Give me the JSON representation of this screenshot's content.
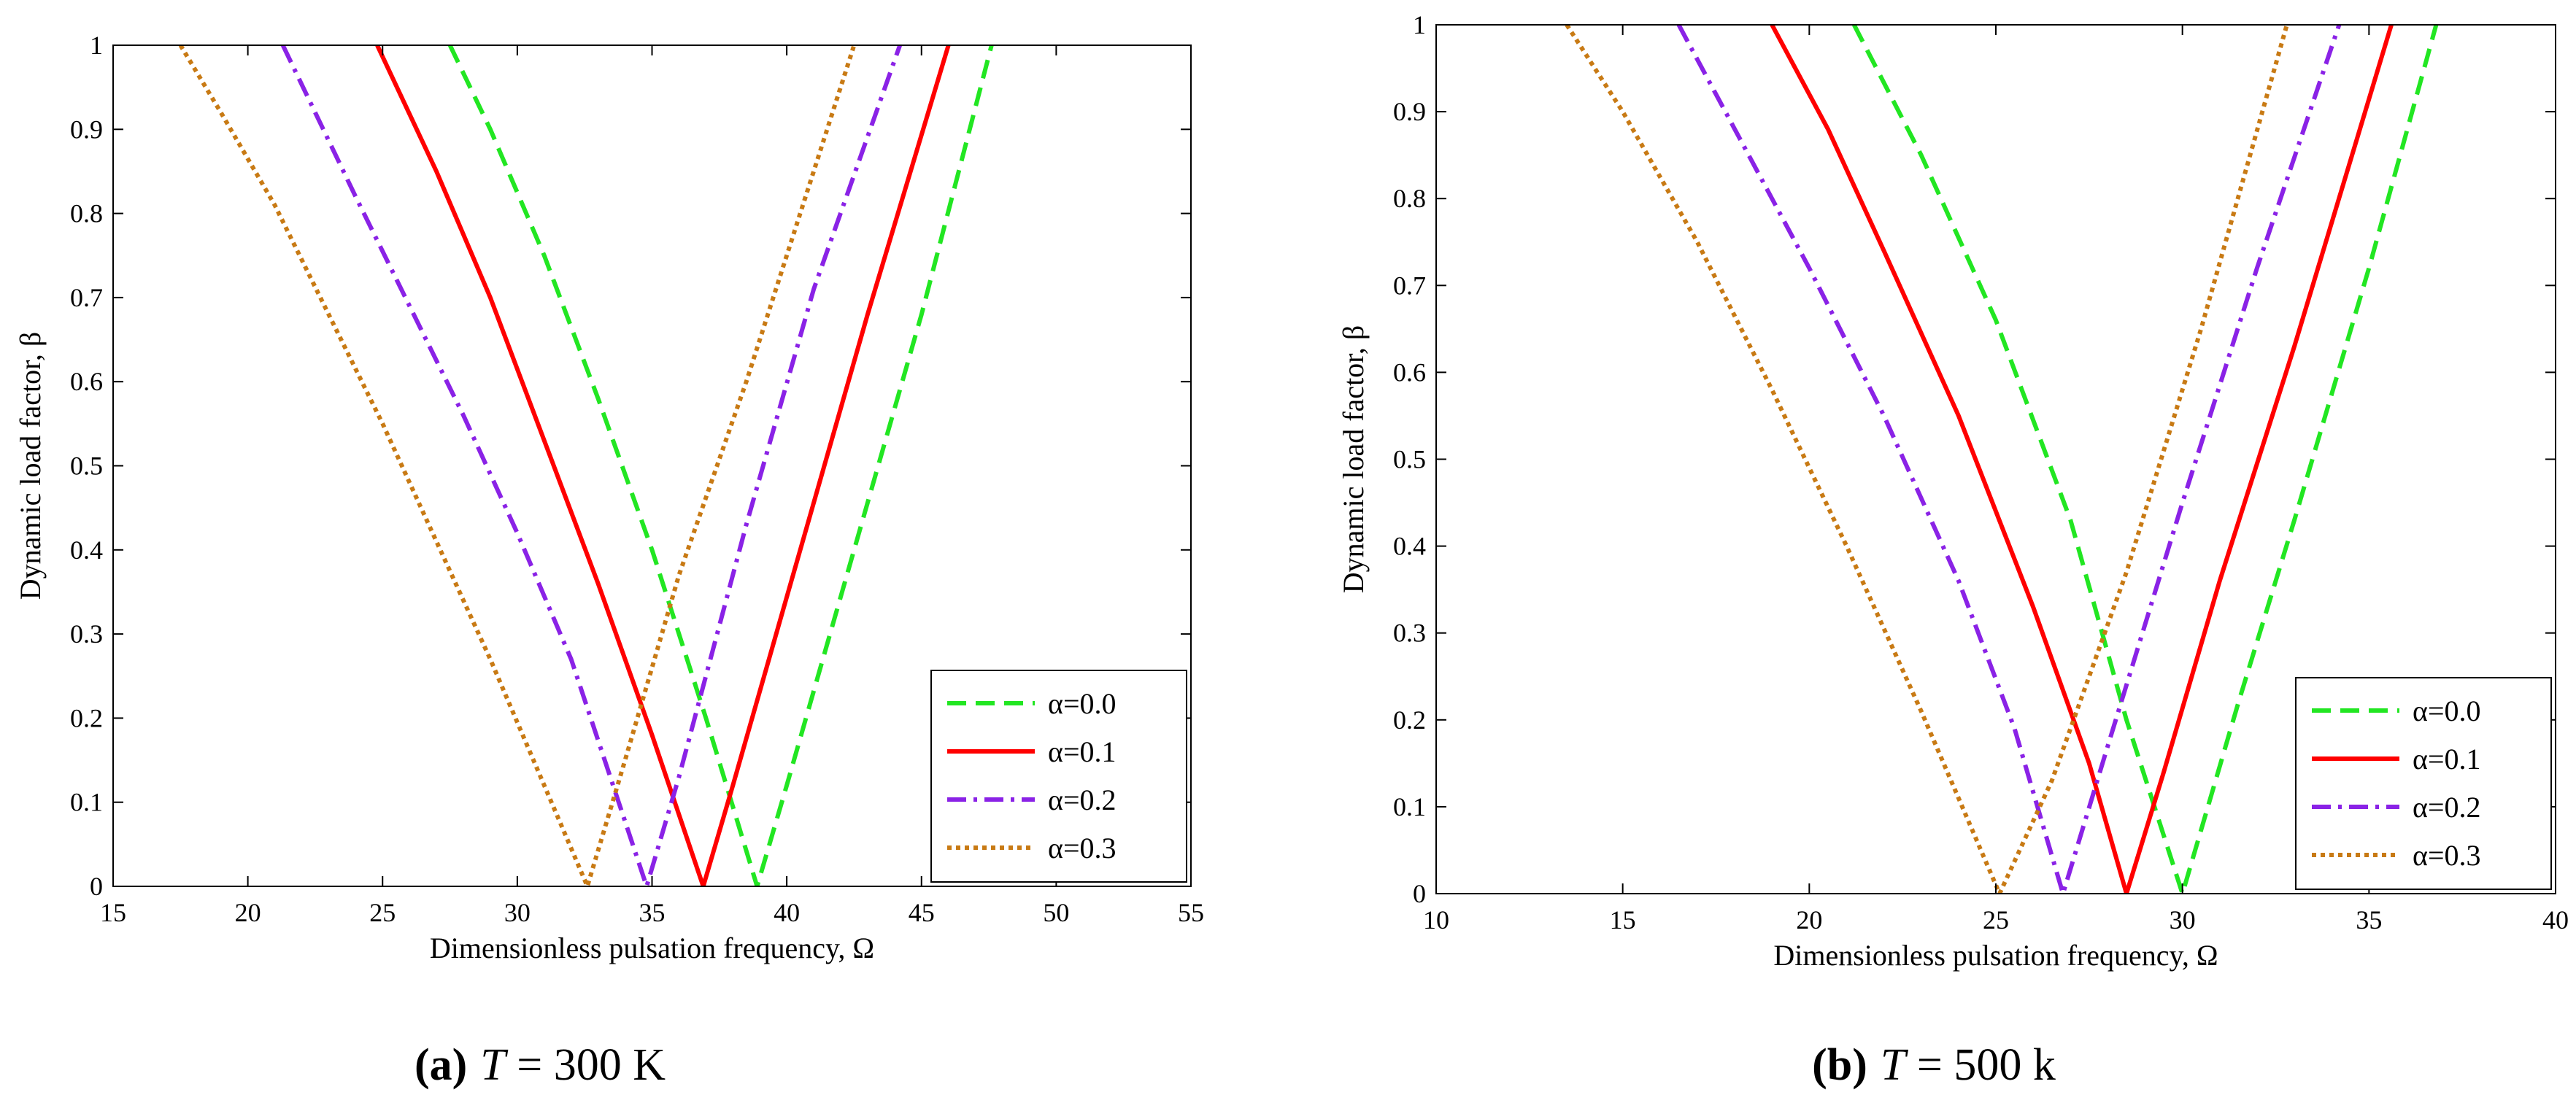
{
  "figure": {
    "captions": [
      {
        "label": "(a)",
        "var": "T",
        "text": " = 300 K"
      },
      {
        "label": "(b)",
        "var": "T",
        "text": " = 500 k"
      }
    ]
  },
  "colors": {
    "alpha0": "#22e622",
    "alpha1": "#ff0000",
    "alpha2": "#8a22e6",
    "alpha3": "#c87a14"
  },
  "chart_data": [
    {
      "type": "line",
      "title": "",
      "xlabel": "Dimensionless pulsation frequency, Ω",
      "ylabel": "Dynamic load factor, β",
      "xlim": [
        15,
        55
      ],
      "ylim": [
        0,
        1
      ],
      "xticks": [
        15,
        20,
        25,
        30,
        35,
        40,
        45,
        50,
        55
      ],
      "yticks": [
        0,
        0.1,
        0.2,
        0.3,
        0.4,
        0.5,
        0.6,
        0.7,
        0.8,
        0.9,
        1
      ],
      "ytick_labels": [
        "0",
        "0.1",
        "0.2",
        "0.3",
        "0.4",
        "0.5",
        "0.6",
        "0.7",
        "0.8",
        "0.9",
        "1"
      ],
      "grid": false,
      "legend_position": "bottom-right",
      "series": [
        {
          "name": "α=0.0",
          "style": "dashed",
          "color_key": "alpha0",
          "x": [
            27.5,
            29,
            31,
            33,
            35,
            37,
            38.9,
            40,
            42.5,
            45,
            47.6
          ],
          "y": [
            1.0,
            0.9,
            0.75,
            0.58,
            0.4,
            0.2,
            0.0,
            0.12,
            0.4,
            0.68,
            1.0
          ]
        },
        {
          "name": "α=0.1",
          "style": "solid",
          "color_key": "alpha1",
          "x": [
            24.8,
            27,
            29,
            31,
            33,
            35,
            36.9,
            38,
            40.5,
            43,
            46.0
          ],
          "y": [
            1.0,
            0.85,
            0.7,
            0.53,
            0.36,
            0.18,
            0.0,
            0.12,
            0.4,
            0.68,
            1.0
          ]
        },
        {
          "name": "α=0.2",
          "style": "dashdot",
          "color_key": "alpha2",
          "x": [
            21.3,
            24,
            26,
            28,
            30,
            32,
            34.8,
            36,
            38.5,
            41,
            44.2
          ],
          "y": [
            1.0,
            0.82,
            0.69,
            0.56,
            0.42,
            0.27,
            0.0,
            0.13,
            0.43,
            0.71,
            1.0
          ]
        },
        {
          "name": "α=0.3",
          "style": "dotted",
          "color_key": "alpha3",
          "x": [
            17.5,
            19,
            21,
            23,
            25,
            27,
            29,
            31,
            32.6,
            34,
            36,
            38.5,
            42.5
          ],
          "y": [
            1.0,
            0.92,
            0.81,
            0.68,
            0.55,
            0.41,
            0.27,
            0.12,
            0.0,
            0.15,
            0.37,
            0.6,
            1.0
          ]
        }
      ]
    },
    {
      "type": "line",
      "title": "",
      "xlabel": "Dimensionless pulsation frequency, Ω",
      "ylabel": "Dynamic load factor, β",
      "xlim": [
        10,
        40
      ],
      "ylim": [
        0,
        1
      ],
      "xticks": [
        10,
        15,
        20,
        25,
        30,
        35,
        40
      ],
      "yticks": [
        0,
        0.1,
        0.2,
        0.3,
        0.4,
        0.5,
        0.6,
        0.7,
        0.8,
        0.9,
        1
      ],
      "ytick_labels": [
        "0",
        "0.1",
        "0.2",
        "0.3",
        "0.4",
        "0.5",
        "0.6",
        "0.7",
        "0.8",
        "0.9",
        "1"
      ],
      "grid": false,
      "legend_position": "bottom-right",
      "series": [
        {
          "name": "α=0.0",
          "style": "dashed",
          "color_key": "alpha0",
          "x": [
            21.2,
            23,
            25,
            27,
            28.5,
            30.0,
            31.5,
            33,
            35,
            36.8
          ],
          "y": [
            1.0,
            0.85,
            0.66,
            0.43,
            0.2,
            0.0,
            0.22,
            0.43,
            0.72,
            1.0
          ]
        },
        {
          "name": "α=0.1",
          "style": "solid",
          "color_key": "alpha1",
          "x": [
            19.0,
            20.5,
            22,
            24,
            26,
            27.5,
            28.5,
            29.5,
            31,
            33,
            35.6
          ],
          "y": [
            1.0,
            0.88,
            0.74,
            0.55,
            0.33,
            0.15,
            0.0,
            0.14,
            0.36,
            0.63,
            1.0
          ]
        },
        {
          "name": "α=0.2",
          "style": "dashdot",
          "color_key": "alpha2",
          "x": [
            16.5,
            18,
            20,
            22,
            24,
            25.5,
            26.8,
            28,
            30,
            32,
            34.2
          ],
          "y": [
            1.0,
            0.88,
            0.72,
            0.55,
            0.36,
            0.19,
            0.0,
            0.17,
            0.45,
            0.72,
            1.0
          ]
        },
        {
          "name": "α=0.3",
          "style": "dotted",
          "color_key": "alpha3",
          "x": [
            13.5,
            15,
            17,
            19,
            21,
            23,
            25.1,
            26.5,
            28.5,
            30.5,
            32.8
          ],
          "y": [
            1.0,
            0.9,
            0.75,
            0.58,
            0.4,
            0.21,
            0.0,
            0.13,
            0.37,
            0.65,
            1.0
          ]
        }
      ]
    }
  ]
}
